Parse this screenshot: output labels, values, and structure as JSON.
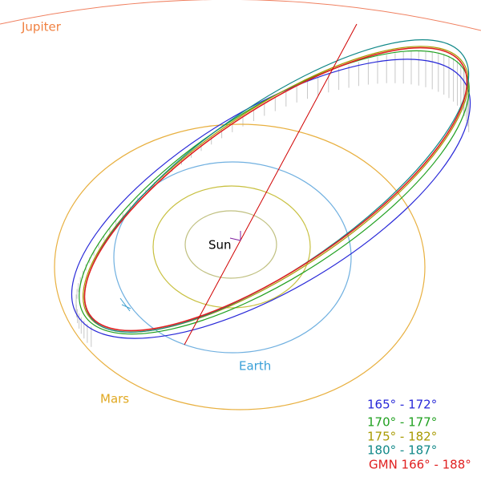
{
  "labels": {
    "jupiter": "Jupiter",
    "mars": "Mars",
    "earth": "Earth",
    "sun": "Sun"
  },
  "legend": [
    {
      "label": "165° - 172°",
      "color": "#2828d8"
    },
    {
      "label": "170° - 177°",
      "color": "#20a020"
    },
    {
      "label": "175° - 182°",
      "color": "#a89a00"
    },
    {
      "label": "180° - 187°",
      "color": "#108888"
    },
    {
      "label": "GMN 166° - 188°",
      "color": "#e02020"
    }
  ]
}
